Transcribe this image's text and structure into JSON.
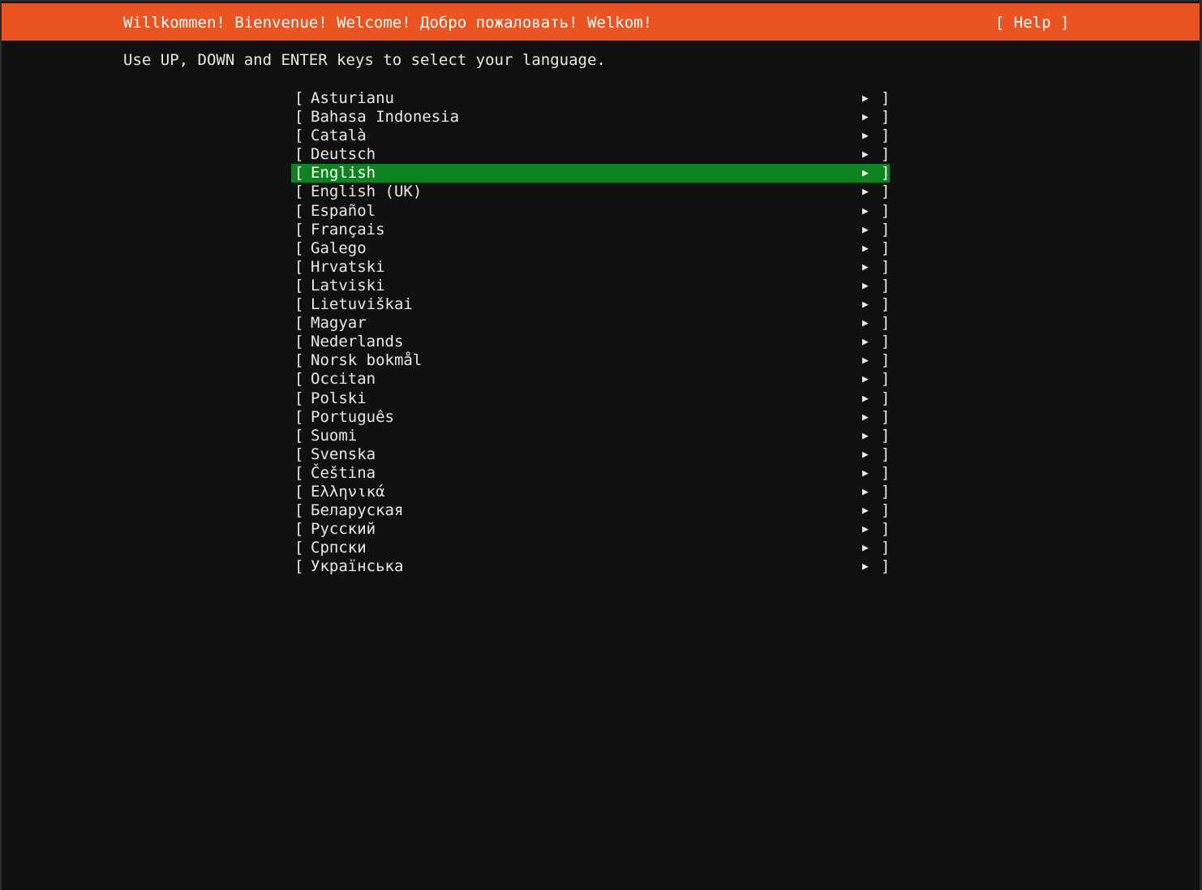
{
  "header": {
    "title": "Willkommen! Bienvenue! Welcome! Добро пожаловать! Welkom!",
    "help": "[ Help ]"
  },
  "instruction": "Use UP, DOWN and ENTER keys to select your language.",
  "colors": {
    "header": "#e95420",
    "selected": "#0e8420",
    "background": "#111111"
  },
  "selected_index": 4,
  "languages": [
    "Asturianu",
    "Bahasa Indonesia",
    "Català",
    "Deutsch",
    "English",
    "English (UK)",
    "Español",
    "Français",
    "Galego",
    "Hrvatski",
    "Latviski",
    "Lietuviškai",
    "Magyar",
    "Nederlands",
    "Norsk bokmål",
    "Occitan",
    "Polski",
    "Português",
    "Suomi",
    "Svenska",
    "Čeština",
    "Ελληνικά",
    "Беларуская",
    "Русский",
    "Српски",
    "Українська"
  ],
  "row_glyphs": {
    "left": "[",
    "arrow": "▶",
    "right": "]"
  }
}
